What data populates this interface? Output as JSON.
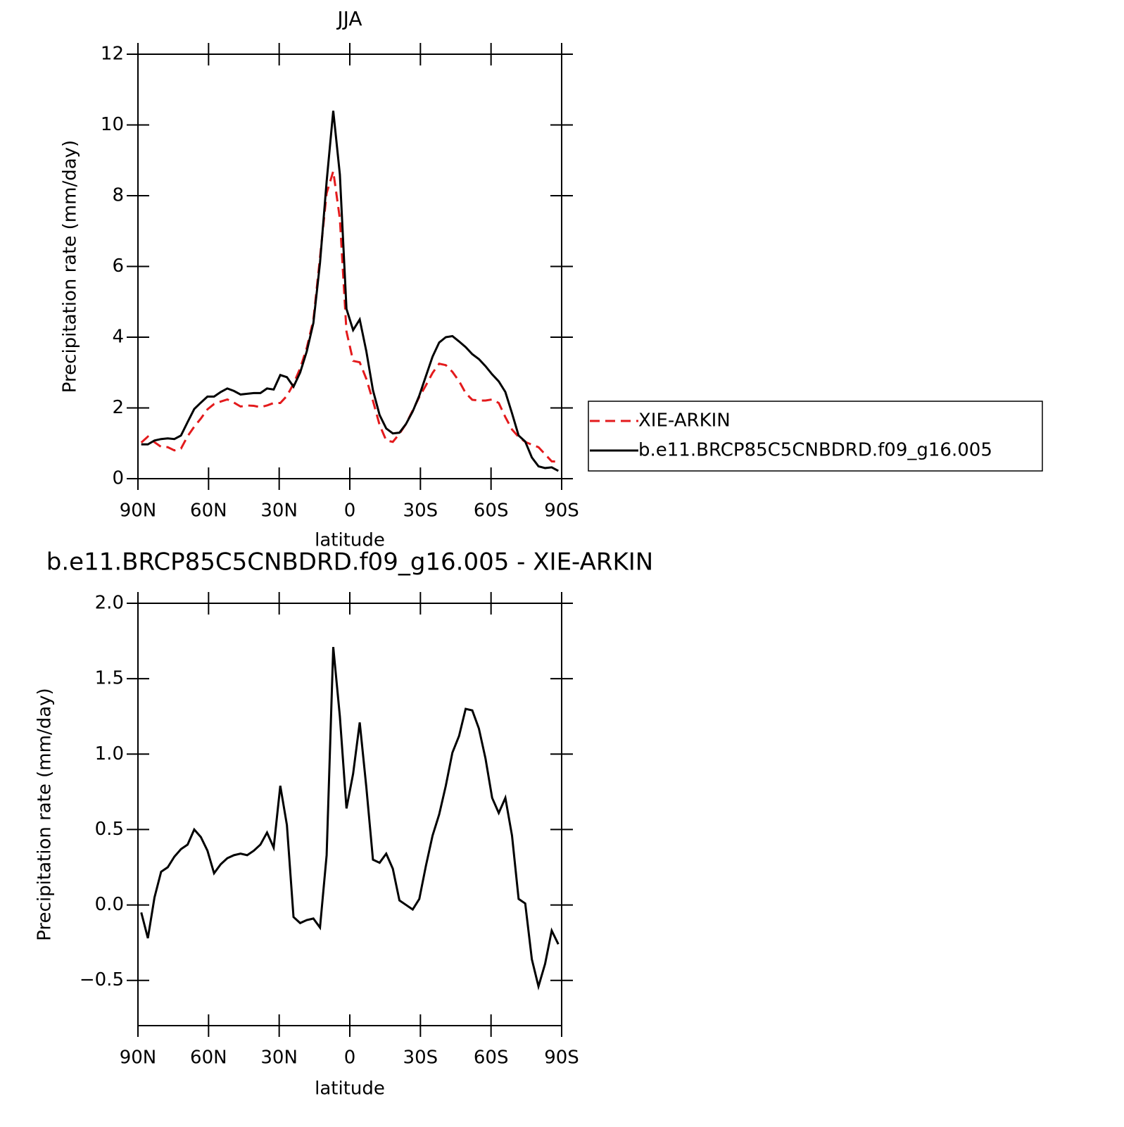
{
  "chart_data": [
    {
      "type": "line",
      "title": "JJA",
      "xlabel": "latitude",
      "ylabel": "Precipitation rate (mm/day)",
      "x": [
        88.59,
        85.78,
        82.97,
        80.16,
        77.34,
        74.53,
        71.72,
        68.91,
        66.09,
        63.28,
        60.47,
        57.66,
        54.84,
        52.03,
        49.22,
        46.41,
        43.59,
        40.78,
        37.97,
        35.16,
        32.34,
        29.53,
        26.72,
        23.91,
        21.09,
        18.28,
        15.47,
        12.66,
        9.84,
        7.03,
        4.22,
        1.41,
        -1.41,
        -4.22,
        -7.03,
        -9.84,
        -12.66,
        -15.47,
        -18.28,
        -21.09,
        -23.91,
        -26.72,
        -29.53,
        -32.34,
        -35.16,
        -37.97,
        -40.78,
        -43.59,
        -46.41,
        -49.22,
        -52.03,
        -54.84,
        -57.66,
        -60.47,
        -63.28,
        -66.09,
        -68.91,
        -71.72,
        -74.53,
        -77.34,
        -80.16,
        -82.97,
        -85.78,
        -88.59
      ],
      "xlim": [
        90,
        -90
      ],
      "xticks": [
        {
          "value": 90,
          "label": "90N"
        },
        {
          "value": 60,
          "label": "60N"
        },
        {
          "value": 30,
          "label": "30N"
        },
        0,
        {
          "value": -30,
          "label": "30S"
        },
        {
          "value": -60,
          "label": "60S"
        },
        {
          "value": -90,
          "label": "90S"
        }
      ],
      "ylim": [
        0,
        12
      ],
      "yticks": [
        0,
        2,
        4,
        6,
        8,
        10,
        12
      ],
      "legend": "right",
      "series": [
        {
          "name": "XIE-ARKIN",
          "color": "#e31a1c",
          "dashed": true,
          "values": [
            1.02,
            1.19,
            1.03,
            0.9,
            0.89,
            0.8,
            0.85,
            1.2,
            1.47,
            1.7,
            1.96,
            2.11,
            2.18,
            2.24,
            2.15,
            2.04,
            2.07,
            2.06,
            2.02,
            2.07,
            2.14,
            2.14,
            2.34,
            2.68,
            3.12,
            3.7,
            4.49,
            6.25,
            8.07,
            8.69,
            7.35,
            4.16,
            3.33,
            3.29,
            2.82,
            2.2,
            1.52,
            1.08,
            1.04,
            1.27,
            1.55,
            1.93,
            2.31,
            2.64,
            2.99,
            3.25,
            3.21,
            3.02,
            2.76,
            2.42,
            2.23,
            2.21,
            2.21,
            2.24,
            2.14,
            1.74,
            1.39,
            1.18,
            1.04,
            0.96,
            0.89,
            0.69,
            0.49,
            0.48
          ]
        },
        {
          "name": "b.e11.BRCP85C5CNBDRD.f09_g16.005",
          "color": "#000000",
          "dashed": false,
          "values": [
            0.97,
            0.97,
            1.08,
            1.12,
            1.14,
            1.12,
            1.22,
            1.6,
            1.97,
            2.15,
            2.32,
            2.32,
            2.45,
            2.55,
            2.48,
            2.38,
            2.4,
            2.42,
            2.42,
            2.55,
            2.52,
            2.93,
            2.87,
            2.6,
            3.0,
            3.6,
            4.4,
            6.1,
            8.4,
            10.4,
            8.6,
            4.8,
            4.2,
            4.5,
            3.6,
            2.5,
            1.8,
            1.42,
            1.28,
            1.3,
            1.55,
            1.9,
            2.35,
            2.9,
            3.45,
            3.85,
            4.0,
            4.03,
            3.88,
            3.72,
            3.52,
            3.38,
            3.18,
            2.95,
            2.75,
            2.45,
            1.85,
            1.22,
            1.05,
            0.6,
            0.35,
            0.3,
            0.32,
            0.22
          ]
        }
      ]
    },
    {
      "type": "line",
      "title": "b.e11.BRCP85C5CNBDRD.f09_g16.005 - XIE-ARKIN",
      "xlabel": "latitude",
      "ylabel": "Precipitation rate (mm/day)",
      "x": [
        88.59,
        85.78,
        82.97,
        80.16,
        77.34,
        74.53,
        71.72,
        68.91,
        66.09,
        63.28,
        60.47,
        57.66,
        54.84,
        52.03,
        49.22,
        46.41,
        43.59,
        40.78,
        37.97,
        35.16,
        32.34,
        29.53,
        26.72,
        23.91,
        21.09,
        18.28,
        15.47,
        12.66,
        9.84,
        7.03,
        4.22,
        1.41,
        -1.41,
        -4.22,
        -7.03,
        -9.84,
        -12.66,
        -15.47,
        -18.28,
        -21.09,
        -23.91,
        -26.72,
        -29.53,
        -32.34,
        -35.16,
        -37.97,
        -40.78,
        -43.59,
        -46.41,
        -49.22,
        -52.03,
        -54.84,
        -57.66,
        -60.47,
        -63.28,
        -66.09,
        -68.91,
        -71.72,
        -74.53,
        -77.34,
        -80.16,
        -82.97,
        -85.78,
        -88.59
      ],
      "xlim": [
        90,
        -90
      ],
      "xticks": [
        {
          "value": 90,
          "label": "90N"
        },
        {
          "value": 60,
          "label": "60N"
        },
        {
          "value": 30,
          "label": "30N"
        },
        0,
        {
          "value": -30,
          "label": "30S"
        },
        {
          "value": -60,
          "label": "60S"
        },
        {
          "value": -90,
          "label": "90S"
        }
      ],
      "ylim": [
        -0.8,
        2.0
      ],
      "yticks": [
        {
          "value": -0.5,
          "label": "−0.5"
        },
        {
          "value": 0,
          "label": "0.0"
        },
        0.5,
        {
          "value": 1,
          "label": "1.0"
        },
        1.5,
        {
          "value": 2,
          "label": "2.0"
        }
      ],
      "color": "#000000",
      "values": [
        -0.05,
        -0.22,
        0.05,
        0.22,
        0.25,
        0.32,
        0.37,
        0.4,
        0.5,
        0.45,
        0.36,
        0.21,
        0.27,
        0.31,
        0.33,
        0.34,
        0.33,
        0.36,
        0.4,
        0.48,
        0.38,
        0.79,
        0.53,
        -0.08,
        -0.12,
        -0.1,
        -0.09,
        -0.15,
        0.33,
        1.71,
        1.25,
        0.64,
        0.87,
        1.21,
        0.78,
        0.3,
        0.28,
        0.34,
        0.24,
        0.03,
        0.0,
        -0.03,
        0.04,
        0.26,
        0.46,
        0.6,
        0.79,
        1.01,
        1.12,
        1.3,
        1.29,
        1.17,
        0.97,
        0.71,
        0.61,
        0.71,
        0.46,
        0.04,
        0.01,
        -0.36,
        -0.54,
        -0.39,
        -0.17,
        -0.26
      ]
    }
  ]
}
